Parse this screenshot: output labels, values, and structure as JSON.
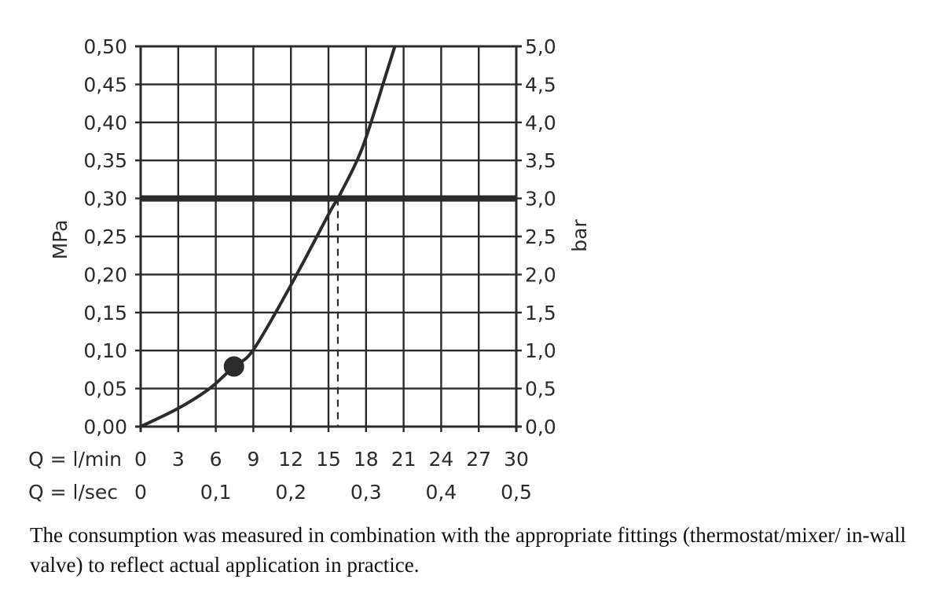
{
  "chart_data": {
    "type": "line",
    "xlabel": "Q = l/min",
    "xlabel_secondary": "Q = l/sec",
    "ylabel": "MPa",
    "ylabel_right": "bar",
    "xlim": [
      0,
      30
    ],
    "ylim": [
      0,
      0.5
    ],
    "grid": true,
    "x_ticks": [
      "0",
      "3",
      "6",
      "9",
      "12",
      "15",
      "18",
      "21",
      "24",
      "27",
      "30"
    ],
    "x_ticks_values": [
      0,
      3,
      6,
      9,
      12,
      15,
      18,
      21,
      24,
      27,
      30
    ],
    "x2_ticks": [
      "0",
      "0,1",
      "0,2",
      "0,3",
      "0,4",
      "0,5"
    ],
    "x2_ticks_values_lmin": [
      0,
      6,
      12,
      18,
      24,
      30
    ],
    "y_ticks": [
      "0,00",
      "0,05",
      "0,10",
      "0,15",
      "0,20",
      "0,25",
      "0,30",
      "0,35",
      "0,40",
      "0,45",
      "0,50"
    ],
    "y_ticks_values": [
      0,
      0.05,
      0.1,
      0.15,
      0.2,
      0.25,
      0.3,
      0.35,
      0.4,
      0.45,
      0.5
    ],
    "y2_ticks": [
      "0,0",
      "0,5",
      "1,0",
      "1,5",
      "2,0",
      "2,5",
      "3,0",
      "3,5",
      "4,0",
      "4,5",
      "5,0"
    ],
    "series": [
      {
        "x": [
          0,
          3,
          5.5,
          7.45,
          9,
          12,
          15.1,
          15.75,
          17.2,
          18.1,
          19.5,
          20.3
        ],
        "y": [
          0,
          0.024,
          0.05,
          0.079,
          0.101,
          0.186,
          0.282,
          0.3,
          0.347,
          0.385,
          0.458,
          0.5
        ]
      }
    ],
    "marker_point": {
      "x": 7.45,
      "y": 0.079
    },
    "reference_line_y": 0.3,
    "reference_drop_x": 15.75,
    "color": "#2b2b2b"
  },
  "caption": "The consumption was measured in combination with the appropriate fittings (thermostat/mixer/ in-wall valve) to reflect actual application in practice."
}
